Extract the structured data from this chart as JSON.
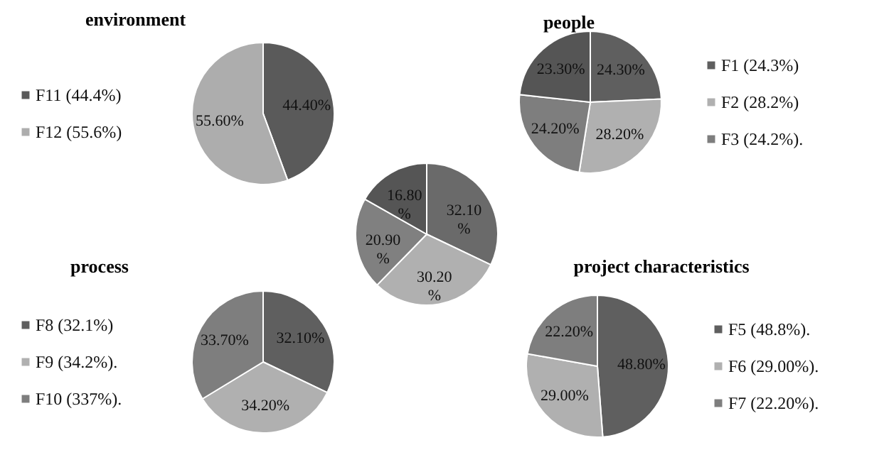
{
  "chart_data": [
    {
      "type": "pie",
      "title": "environment",
      "categories": [
        "F11 (44.4%)",
        "F12 (55.6%)"
      ],
      "values": [
        44.4,
        55.6
      ],
      "colors": [
        "#5a5a5a",
        "#adadad"
      ],
      "value_labels": [
        "44.40%",
        "55.60%"
      ],
      "legend": "left"
    },
    {
      "type": "pie",
      "title": "people",
      "categories": [
        "F1 (24.3%)",
        "F2 (28.2%)",
        "F3 (24.2%).",
        null
      ],
      "values": [
        24.3,
        28.2,
        24.2,
        23.3
      ],
      "colors": [
        "#5f5f5f",
        "#b0b0b0",
        "#7e7e7e",
        "#555555"
      ],
      "value_labels": [
        "24.30%",
        "28.20%",
        "24.20%",
        "23.30%"
      ],
      "legend": "right"
    },
    {
      "type": "pie",
      "categories": [
        null,
        null,
        null,
        null
      ],
      "values": [
        32.1,
        30.2,
        20.9,
        16.8
      ],
      "colors": [
        "#6a6a6a",
        "#b0b0b0",
        "#808080",
        "#555555"
      ],
      "value_labels": [
        "32.10%",
        "30.20%",
        "20.90%",
        "16.80%"
      ],
      "legend": false
    },
    {
      "type": "pie",
      "title": "process",
      "categories": [
        "F8  (32.1%)",
        "F9 (34.2%).",
        "F10 (337%)."
      ],
      "values": [
        32.1,
        34.2,
        33.7
      ],
      "colors": [
        "#5f5f5f",
        "#b0b0b0",
        "#7e7e7e"
      ],
      "value_labels": [
        "32.10%",
        "34.20%",
        "33.70%"
      ],
      "legend": "left"
    },
    {
      "type": "pie",
      "title": "project characteristics",
      "categories": [
        "F5  (48.8%).",
        "F6  (29.00%).",
        "F7 (22.20%)."
      ],
      "values": [
        48.8,
        29.0,
        22.2
      ],
      "colors": [
        "#5f5f5f",
        "#b0b0b0",
        "#7e7e7e"
      ],
      "value_labels": [
        "48.80%",
        "29.00%",
        "22.20%"
      ],
      "legend": "right"
    }
  ]
}
